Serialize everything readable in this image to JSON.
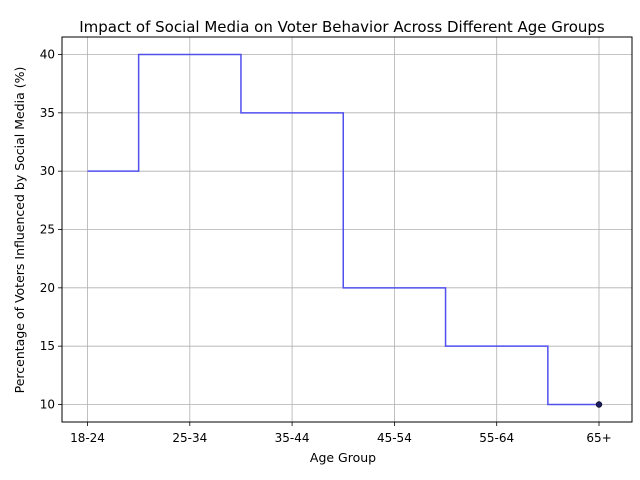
{
  "chart_data": {
    "type": "line",
    "drawstyle": "steps-mid",
    "title": "Impact of Social Media on Voter Behavior Across Different Age Groups",
    "xlabel": "Age Group",
    "ylabel": "Percentage of Voters Influenced by Social Media (%)",
    "categories": [
      "18-24",
      "25-34",
      "35-44",
      "45-54",
      "55-64",
      "65+"
    ],
    "series": [
      {
        "values": [
          30,
          40,
          35,
          20,
          15,
          10
        ],
        "color": "#5050ee"
      }
    ],
    "y_ticks": [
      10,
      15,
      20,
      25,
      30,
      35,
      40
    ],
    "ylim": [
      8.5,
      41.5
    ],
    "grid": true,
    "last_point_marker": true
  }
}
